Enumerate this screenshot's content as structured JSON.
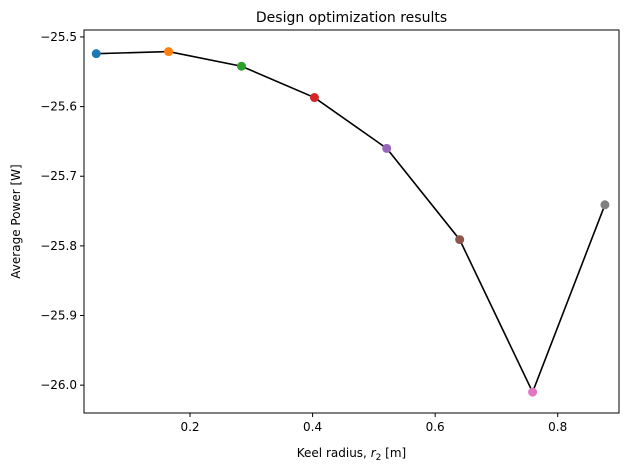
{
  "chart_data": {
    "type": "line",
    "title": "Design optimization results",
    "xlabel": "Keel radius, r2 [m]",
    "xlabel_parts": {
      "prefix": "Keel radius, ",
      "var": "r",
      "sub": "2",
      "suffix": " [m]"
    },
    "ylabel": "Average Power [W]",
    "xlim": [
      0.027,
      0.9
    ],
    "ylim": [
      -26.04,
      -25.49
    ],
    "x_ticks": [
      0.2,
      0.4,
      0.6,
      0.8
    ],
    "x_tick_labels": [
      "0.2",
      "0.4",
      "0.6",
      "0.8"
    ],
    "y_ticks": [
      -25.5,
      -25.6,
      -25.7,
      -25.8,
      -25.9,
      -26.0
    ],
    "y_tick_labels": [
      "−25.5",
      "−25.6",
      "−25.7",
      "−25.8",
      "−25.9",
      "−26.0"
    ],
    "grid": false,
    "line_color": "#000000",
    "series": [
      {
        "x": [
          0.047,
          0.165,
          0.284,
          0.403,
          0.521,
          0.64,
          0.759,
          0.877
        ],
        "y": [
          -25.524,
          -25.521,
          -25.542,
          -25.587,
          -25.66,
          -25.791,
          -26.01,
          -25.741
        ],
        "colors": [
          "#1f77b4",
          "#ff7f0e",
          "#2ca02c",
          "#d62728",
          "#9467bd",
          "#8c564b",
          "#e377c2",
          "#7f7f7f"
        ]
      }
    ]
  }
}
